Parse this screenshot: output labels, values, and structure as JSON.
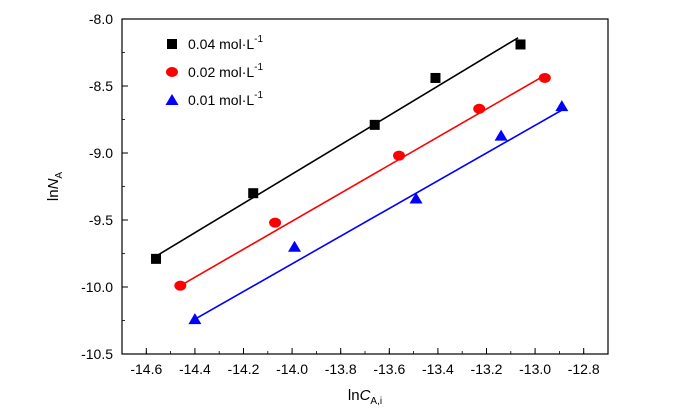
{
  "chart_data": {
    "type": "scatter",
    "x_ticks": [
      "-14.6",
      "-14.4",
      "-14.2",
      "-14.0",
      "-13.8",
      "-13.6",
      "-13.4",
      "-13.2",
      "-13.0",
      "-12.8"
    ],
    "y_ticks": [
      "-8.0",
      "-8.5",
      "-9.0",
      "-9.5",
      "-10.0",
      "-10.5"
    ],
    "xlim": [
      -14.7,
      -12.7
    ],
    "ylim": [
      -10.5,
      -8.0
    ],
    "xlabel": {
      "prefix": "ln",
      "var": "C",
      "sub": "A,i"
    },
    "ylabel": {
      "prefix": "ln",
      "var": "N",
      "sub": "A"
    },
    "legend_position": "top-left",
    "grid": false,
    "series": [
      {
        "name": "0.04 mol·L",
        "name_sup": "-1",
        "marker": "square",
        "color": "#000000",
        "points": [
          {
            "x": -14.56,
            "y": -9.79
          },
          {
            "x": -14.16,
            "y": -9.3
          },
          {
            "x": -13.66,
            "y": -8.79
          },
          {
            "x": -13.41,
            "y": -8.44
          },
          {
            "x": -13.06,
            "y": -8.19
          }
        ],
        "fit": {
          "x": [
            -14.56,
            -13.07
          ],
          "y": [
            -9.77,
            -8.14
          ]
        }
      },
      {
        "name": "0.02 mol·L",
        "name_sup": "-1",
        "marker": "circle",
        "color": "#ff0000",
        "points": [
          {
            "x": -14.46,
            "y": -9.99
          },
          {
            "x": -14.07,
            "y": -9.52
          },
          {
            "x": -13.56,
            "y": -9.02
          },
          {
            "x": -13.23,
            "y": -8.67
          },
          {
            "x": -12.96,
            "y": -8.44
          }
        ],
        "fit": {
          "x": [
            -14.46,
            -12.95
          ],
          "y": [
            -9.99,
            -8.41
          ]
        }
      },
      {
        "name": "0.01 mol·L",
        "name_sup": "-1",
        "marker": "triangle",
        "color": "#0000ff",
        "points": [
          {
            "x": -14.4,
            "y": -10.24
          },
          {
            "x": -13.99,
            "y": -9.7
          },
          {
            "x": -13.49,
            "y": -9.34
          },
          {
            "x": -13.14,
            "y": -8.87
          },
          {
            "x": -12.89,
            "y": -8.65
          }
        ],
        "fit": {
          "x": [
            -14.39,
            -12.89
          ],
          "y": [
            -10.23,
            -8.68
          ]
        }
      }
    ]
  }
}
